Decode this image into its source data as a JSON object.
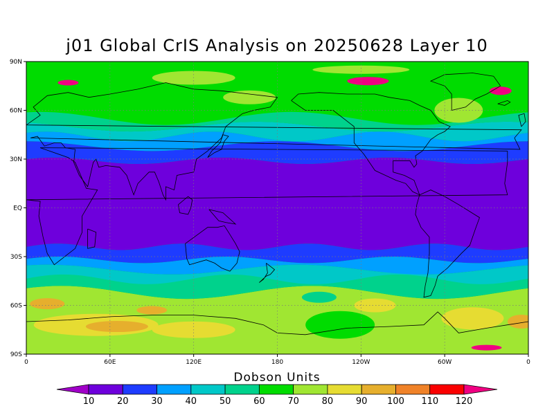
{
  "title": "j01 Global CrIS Analysis on 20250628 Layer 10",
  "map": {
    "lat_ticks": [
      "90N",
      "60N",
      "30N",
      "EQ",
      "30S",
      "60S",
      "90S"
    ],
    "lon_ticks": [
      "0",
      "60E",
      "120E",
      "180",
      "120W",
      "60W",
      "0"
    ]
  },
  "colorbar": {
    "title": "Dobson Units",
    "labels": [
      "10",
      "20",
      "30",
      "40",
      "50",
      "60",
      "70",
      "80",
      "90",
      "100",
      "110",
      "120"
    ],
    "colors": [
      "#a000c8",
      "#6e00dc",
      "#1e3cff",
      "#00a0ff",
      "#00c8c8",
      "#00d28c",
      "#00dc00",
      "#a0e632",
      "#e6dc32",
      "#e6af2d",
      "#f08228",
      "#fa0000",
      "#f00082"
    ]
  },
  "field_colors": {
    "tropics": "#6e00dc",
    "subtropics": "#1e3cff",
    "mid_low": "#00a0ff",
    "mid": "#00c8c8",
    "mid_high": "#00d28c",
    "high": "#00dc00",
    "polar_low": "#a0e632",
    "polar_mid": "#e6dc32",
    "polar_high": "#e6af2d",
    "extreme": "#f00082"
  }
}
